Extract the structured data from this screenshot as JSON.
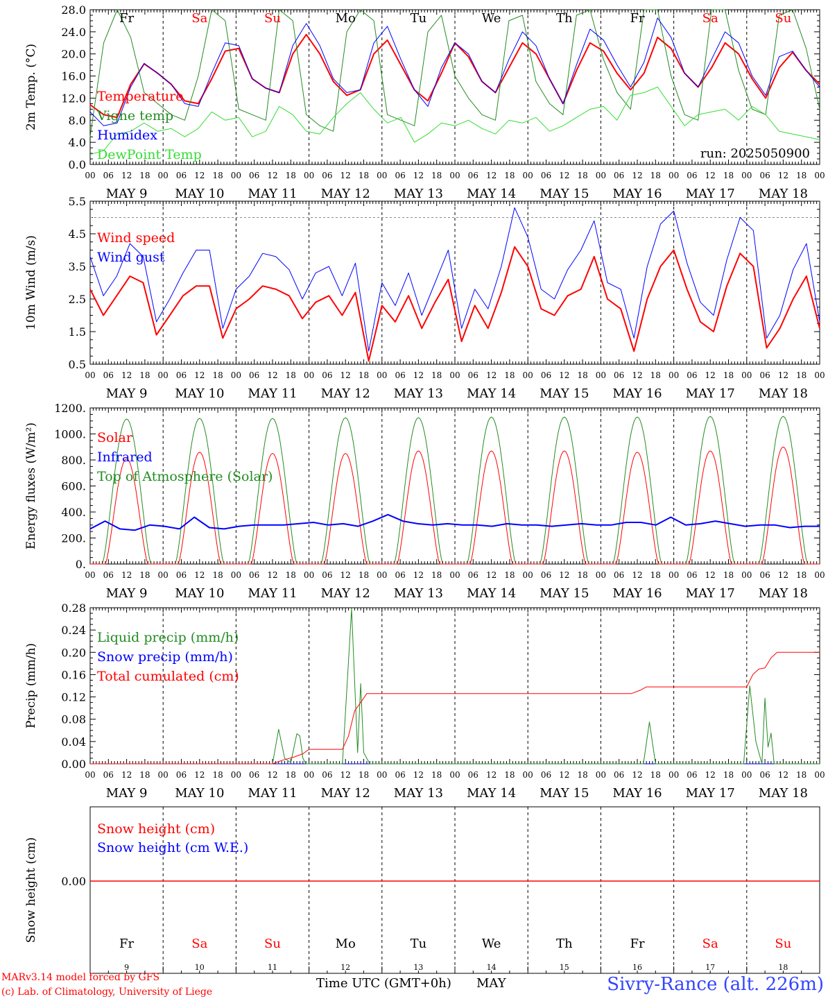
{
  "days": [
    "MAY  9",
    "MAY 10",
    "MAY 11",
    "MAY 12",
    "MAY 13",
    "MAY 14",
    "MAY 15",
    "MAY 16",
    "MAY 17",
    "MAY 18"
  ],
  "weekdays": [
    {
      "name": "Fr",
      "color": "#000000"
    },
    {
      "name": "Sa",
      "color": "#ff0000"
    },
    {
      "name": "Su",
      "color": "#ff0000"
    },
    {
      "name": "Mo",
      "color": "#000000"
    },
    {
      "name": "Tu",
      "color": "#000000"
    },
    {
      "name": "We",
      "color": "#000000"
    },
    {
      "name": "Th",
      "color": "#000000"
    },
    {
      "name": "Fr",
      "color": "#000000"
    },
    {
      "name": "Sa",
      "color": "#ff0000"
    },
    {
      "name": "Su",
      "color": "#ff0000"
    }
  ],
  "day_numbers": [
    "9",
    "10",
    "11",
    "12",
    "13",
    "14",
    "15",
    "16",
    "17",
    "18"
  ],
  "hour_ticks": [
    "00",
    "06",
    "12",
    "18"
  ],
  "final_hour_tick": "00",
  "footer": {
    "model_line": "MARv3.14 model forced by GFS",
    "copyright_line": "(c) Lab. of Climatology, University of Liege",
    "time_axis_label": "Time UTC (GMT+0h)",
    "month": "MAY",
    "station": "Sivry-Rance (alt. 226m)"
  },
  "colors": {
    "red": "#ff0000",
    "blue": "#0000ff",
    "darkgreen": "#228b22",
    "lightgreen": "#33dd33",
    "ref": "#888888"
  },
  "chart_data": [
    {
      "type": "line",
      "id": "temp",
      "ylabel": "2m Temp. (°C)",
      "ylim": [
        0,
        28
      ],
      "yticks": [
        "0.0",
        "4.0",
        "8.0",
        "12.0",
        "16.0",
        "20.0",
        "24.0",
        "28.0"
      ],
      "annotation": "run: 2025050900",
      "series": [
        {
          "name": "Temperature",
          "color": "#ff0000",
          "width": 2,
          "values": [
            10.8,
            9,
            8.5,
            14.5,
            18.2,
            16.5,
            14.5,
            11.5,
            11.0,
            15.5,
            20.5,
            21.0,
            15.5,
            13.8,
            13.0,
            20.0,
            23.5,
            20.0,
            15.0,
            12.5,
            13.5,
            20.0,
            22.5,
            18.0,
            13.5,
            11.5,
            16.5,
            22.0,
            19.5,
            15.0,
            13.0,
            17.5,
            22.0,
            20.0,
            15.5,
            11.0,
            17.0,
            22.0,
            20.5,
            16.5,
            13.5,
            16.5,
            23.0,
            21.0,
            16.5,
            14.0,
            17.5,
            22.0,
            20.0,
            15.5,
            12.0,
            17.5,
            20.3,
            17.0,
            14.5
          ]
        },
        {
          "name": "Vigne temp",
          "color": "#228b22",
          "width": 1,
          "values": [
            5,
            22,
            28,
            23,
            13,
            11,
            9,
            8,
            16,
            28,
            26,
            10,
            9,
            8,
            28,
            26,
            9,
            7,
            6,
            24,
            28,
            26,
            9,
            8,
            7,
            24,
            27,
            16,
            12,
            9,
            8,
            26,
            27,
            15,
            11,
            9,
            27,
            28,
            19,
            13,
            10,
            28,
            28,
            16,
            9,
            8,
            28,
            28,
            17,
            10,
            9,
            27,
            28,
            21,
            10
          ]
        },
        {
          "name": "Humidex",
          "color": "#0000ff",
          "width": 1,
          "values": [
            9.5,
            7,
            7.5,
            14.0,
            18.3,
            16.5,
            14.5,
            11.0,
            10.5,
            16.5,
            22.0,
            21.5,
            15.5,
            13.8,
            13.0,
            21.5,
            25.5,
            21.5,
            15.5,
            13.0,
            13.5,
            22.0,
            25.0,
            19.0,
            13.5,
            10.5,
            17.5,
            22.0,
            20.0,
            15.0,
            13.0,
            19.0,
            24.0,
            21.5,
            15.5,
            11.0,
            18.0,
            24.5,
            22.5,
            18.0,
            14.0,
            18.5,
            26.5,
            23.0,
            16.5,
            14.0,
            19.0,
            24.0,
            22.0,
            16.0,
            12.5,
            19.5,
            20.5,
            17.0,
            14.0
          ]
        },
        {
          "name": "DewPoint Temp",
          "color": "#33dd33",
          "width": 1,
          "values": [
            1.8,
            2.5,
            5.5,
            6.0,
            7.5,
            6.0,
            6.5,
            5.0,
            6.5,
            9.5,
            8.0,
            8.5,
            5.0,
            6.0,
            10.5,
            9.0,
            6.0,
            5.5,
            8.5,
            11.0,
            13.0,
            10.0,
            7.5,
            8.5,
            4.0,
            5.5,
            7.5,
            7.0,
            8.0,
            6.5,
            5.5,
            8.0,
            7.5,
            8.5,
            6.0,
            7.0,
            8.5,
            10.0,
            10.5,
            8.0,
            12.5,
            13.0,
            14.0,
            10.5,
            7.0,
            9.0,
            9.5,
            10.0,
            8.0,
            10.5,
            9.0,
            6.0,
            5.5,
            5.0,
            4.5
          ]
        }
      ]
    },
    {
      "type": "line",
      "id": "wind",
      "ylabel": "10m Wind (m/s)",
      "ylim": [
        0.5,
        5.5
      ],
      "yticks": [
        "0.5",
        "1.5",
        "2.5",
        "3.5",
        "4.5",
        "5.5"
      ],
      "reference_line": 5.0,
      "series": [
        {
          "name": "Wind speed",
          "color": "#ff0000",
          "width": 2,
          "values": [
            2.8,
            2.0,
            2.6,
            3.2,
            3.0,
            1.4,
            2.0,
            2.6,
            2.9,
            2.9,
            1.3,
            2.2,
            2.5,
            2.9,
            2.8,
            2.6,
            1.9,
            2.4,
            2.6,
            2.0,
            2.7,
            0.6,
            2.3,
            1.8,
            2.6,
            1.6,
            2.4,
            3.1,
            1.2,
            2.3,
            1.6,
            2.7,
            4.1,
            3.5,
            2.2,
            2.0,
            2.6,
            2.8,
            3.8,
            2.5,
            2.2,
            0.9,
            2.5,
            3.5,
            4.0,
            2.8,
            1.8,
            1.5,
            2.9,
            3.9,
            3.5,
            1.0,
            1.6,
            2.5,
            3.2,
            1.6
          ]
        },
        {
          "name": "Wind gust",
          "color": "#0000ff",
          "width": 1,
          "values": [
            3.8,
            2.6,
            3.2,
            4.2,
            3.8,
            1.8,
            2.5,
            3.3,
            4.0,
            4.0,
            1.6,
            2.8,
            3.2,
            3.9,
            3.8,
            3.4,
            2.5,
            3.3,
            3.5,
            2.6,
            3.6,
            0.9,
            3.0,
            2.3,
            3.3,
            2.0,
            3.0,
            4.0,
            1.6,
            2.8,
            2.2,
            3.5,
            5.3,
            4.4,
            2.8,
            2.5,
            3.4,
            4.0,
            4.9,
            3.0,
            2.8,
            1.3,
            3.5,
            4.8,
            5.2,
            3.6,
            2.4,
            2.0,
            3.7,
            5.0,
            4.6,
            1.3,
            2.0,
            3.4,
            4.2,
            1.8
          ]
        }
      ]
    },
    {
      "type": "line",
      "id": "energy",
      "ylabel": "Energy fluxes (W/m²)",
      "ylim": [
        0,
        1200
      ],
      "yticks": [
        "0.",
        "200.",
        "400.",
        "600.",
        "800.",
        "1000.",
        "1200."
      ],
      "series": [
        {
          "name": "Solar",
          "color": "#ff0000",
          "width": 1,
          "peaks": [
            810,
            860,
            850,
            850,
            870,
            870,
            870,
            860,
            870,
            900
          ]
        },
        {
          "name": "Infrared",
          "color": "#0000ff",
          "width": 2,
          "values": [
            270,
            330,
            270,
            260,
            300,
            290,
            270,
            360,
            280,
            270,
            290,
            300,
            300,
            300,
            310,
            320,
            300,
            310,
            290,
            330,
            380,
            330,
            310,
            300,
            310,
            300,
            300,
            290,
            310,
            300,
            300,
            290,
            300,
            310,
            300,
            300,
            320,
            320,
            300,
            360,
            300,
            310,
            330,
            310,
            290,
            300,
            300,
            280,
            290,
            290
          ]
        },
        {
          "name": "Top of Atmosphere (Solar)",
          "color": "#228b22",
          "width": 1,
          "peaks": [
            1115,
            1120,
            1120,
            1125,
            1125,
            1130,
            1130,
            1130,
            1135,
            1135
          ]
        }
      ]
    },
    {
      "type": "line",
      "id": "precip",
      "ylabel": "Precip (mm/h)",
      "ylim": [
        0,
        0.28
      ],
      "yticks": [
        "0.00",
        "0.04",
        "0.08",
        "0.12",
        "0.16",
        "0.20",
        "0.24",
        "0.28"
      ],
      "series": [
        {
          "name": "Liquid precip (mm/h)",
          "color": "#228b22",
          "width": 1,
          "points": [
            [
              0,
              0
            ],
            [
              60,
              0
            ],
            [
              62,
              0.062
            ],
            [
              64,
              0.01
            ],
            [
              66,
              0.002
            ],
            [
              68,
              0.054
            ],
            [
              69,
              0.05
            ],
            [
              70,
              0.01
            ],
            [
              71,
              0
            ],
            [
              83,
              0
            ],
            [
              86,
              0.278
            ],
            [
              88,
              0.02
            ],
            [
              89,
              0.144
            ],
            [
              90,
              0.02
            ],
            [
              92,
              0
            ],
            [
              182,
              0
            ],
            [
              184,
              0.075
            ],
            [
              186,
              0
            ],
            [
              215,
              0
            ],
            [
              217,
              0.14
            ],
            [
              219,
              0.04
            ],
            [
              221,
              0
            ],
            [
              222,
              0.118
            ],
            [
              223,
              0.03
            ],
            [
              224,
              0.055
            ],
            [
              225,
              0
            ],
            [
              240,
              0
            ]
          ]
        },
        {
          "name": "Snow precip (mm/h)",
          "color": "#0000ff",
          "width": 1,
          "points": [
            [
              0,
              0
            ],
            [
              240,
              0
            ]
          ]
        },
        {
          "name": "Total cumulated (cm)",
          "color": "#ff0000",
          "width": 1,
          "points": [
            [
              0,
              0
            ],
            [
              60,
              0
            ],
            [
              63,
              0.006
            ],
            [
              67,
              0.012
            ],
            [
              70,
              0.018
            ],
            [
              72,
              0.026
            ],
            [
              83,
              0.026
            ],
            [
              85,
              0.05
            ],
            [
              87,
              0.095
            ],
            [
              89,
              0.11
            ],
            [
              91,
              0.126
            ],
            [
              178,
              0.126
            ],
            [
              181,
              0.132
            ],
            [
              183,
              0.138
            ],
            [
              216,
              0.138
            ],
            [
              218,
              0.16
            ],
            [
              220,
              0.17
            ],
            [
              222,
              0.172
            ],
            [
              224,
              0.19
            ],
            [
              226,
              0.2
            ],
            [
              240,
              0.2
            ]
          ]
        }
      ]
    },
    {
      "type": "line",
      "id": "snow",
      "ylabel": "Snow height (cm)",
      "yticks": [
        "0.00"
      ],
      "series": [
        {
          "name": "Snow height (cm)",
          "color": "#ff0000",
          "width": 1,
          "values": [
            0,
            0
          ]
        },
        {
          "name": "Snow height (cm W.E.)",
          "color": "#0000ff",
          "width": 1,
          "values": [
            0,
            0
          ]
        }
      ]
    }
  ]
}
